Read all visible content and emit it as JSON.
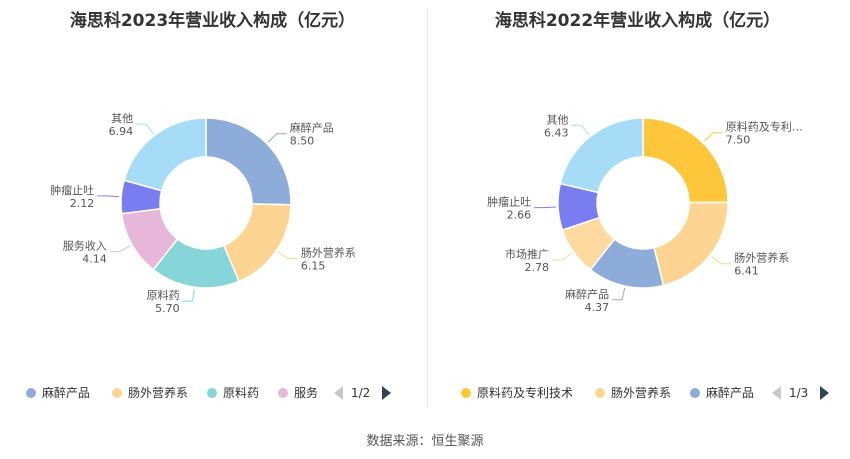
{
  "chart_data": [
    {
      "type": "pie",
      "title": "海思科2023年营业收入构成（亿元）",
      "slices": [
        {
          "label": "麻醉产品",
          "value": 8.5,
          "value_text": "8.50",
          "color": "#8eacd9"
        },
        {
          "label": "肠外营养系",
          "value": 6.15,
          "value_text": "6.15",
          "color": "#fed493"
        },
        {
          "label": "原料药",
          "value": 5.7,
          "value_text": "5.70",
          "color": "#85d5d9"
        },
        {
          "label": "服务收入",
          "value": 4.14,
          "value_text": "4.14",
          "color": "#e6b7d9"
        },
        {
          "label": "肿瘤止吐",
          "value": 2.12,
          "value_text": "2.12",
          "color": "#7a7df0"
        },
        {
          "label": "其他",
          "value": 6.94,
          "value_text": "6.94",
          "color": "#a7dcf7"
        }
      ],
      "legend": {
        "items": [
          {
            "label": "麻醉产品",
            "color": "#8eacd9"
          },
          {
            "label": "肠外营养系",
            "color": "#fed493"
          },
          {
            "label": "原料药",
            "color": "#85d5d9"
          },
          {
            "label": "服务",
            "color": "#e6b7d9"
          }
        ],
        "page": "1/2",
        "placement": "bottom"
      }
    },
    {
      "type": "pie",
      "title": "海思科2022年营业收入构成（亿元）",
      "slices": [
        {
          "label": "原料药及专利…",
          "value": 7.5,
          "value_text": "7.50",
          "color": "#fdc63b"
        },
        {
          "label": "肠外营养系",
          "value": 6.41,
          "value_text": "6.41",
          "color": "#fed493"
        },
        {
          "label": "麻醉产品",
          "value": 4.37,
          "value_text": "4.37",
          "color": "#8eacd9"
        },
        {
          "label": "市场推广",
          "value": 2.78,
          "value_text": "2.78",
          "color": "#fed9a0"
        },
        {
          "label": "肿瘤止吐",
          "value": 2.66,
          "value_text": "2.66",
          "color": "#7a7df0"
        },
        {
          "label": "其他",
          "value": 6.43,
          "value_text": "6.43",
          "color": "#a7dcf7"
        }
      ],
      "legend": {
        "items": [
          {
            "label": "原料药及专利技术",
            "color": "#fdc63b"
          },
          {
            "label": "肠外营养系",
            "color": "#fed493"
          },
          {
            "label": "麻醉产品",
            "color": "#8eacd9"
          }
        ],
        "page": "1/3",
        "placement": "bottom"
      }
    }
  ],
  "source": "数据来源：恒生聚源"
}
